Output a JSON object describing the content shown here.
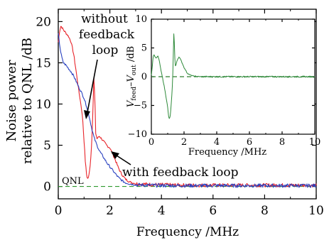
{
  "chart_data": [
    {
      "type": "line",
      "xlabel": "Frequency /MHz",
      "ylabel_lines": [
        "Noise power",
        "relative to QNL /dB"
      ],
      "xlim": [
        0,
        10
      ],
      "ylim": [
        -1.5,
        21.5
      ],
      "xticks": [
        "0",
        "2",
        "4",
        "6",
        "8",
        "10"
      ],
      "yticks": [
        "0",
        "5",
        "10",
        "15",
        "20"
      ],
      "reference_line": {
        "label": "QNL",
        "y": 0,
        "color": "#2e9a2e",
        "style": "dashed"
      },
      "annotations": [
        {
          "lines": [
            "without",
            "feedback",
            "loop"
          ],
          "series": "without feedback loop",
          "points_to": [
            1.05,
            11.0
          ]
        },
        {
          "text": "with feedback loop",
          "series": "with feedback loop",
          "points_to": [
            1.95,
            5.6
          ]
        }
      ],
      "series": [
        {
          "name": "without feedback loop",
          "color": "#e8242a",
          "x": [
            0,
            0.05,
            0.1,
            0.2,
            0.3,
            0.4,
            0.5,
            0.6,
            0.7,
            0.8,
            0.9,
            0.95,
            1.0,
            1.05,
            1.1,
            1.15,
            1.2,
            1.25,
            1.3,
            1.35,
            1.38,
            1.42,
            1.45,
            1.5,
            1.6,
            1.7,
            1.8,
            1.9,
            2.0,
            2.1,
            2.2,
            2.3,
            2.4,
            2.5,
            2.6,
            2.8,
            3.0,
            3.5,
            4.0,
            5.0,
            6.0,
            7.0,
            8.0,
            9.0,
            10.0
          ],
          "y": [
            17.5,
            18.8,
            19.5,
            19.0,
            18.6,
            18.2,
            17.5,
            16.0,
            13.8,
            11.5,
            9.5,
            8.0,
            5.5,
            3.0,
            1.3,
            0.9,
            1.5,
            3.0,
            5.5,
            10.0,
            13.2,
            10.5,
            6.5,
            5.8,
            6.1,
            5.7,
            5.3,
            4.9,
            4.7,
            4.0,
            3.3,
            2.5,
            1.8,
            1.3,
            0.9,
            0.5,
            0.35,
            0.25,
            0.2,
            0.15,
            0.15,
            0.15,
            0.15,
            0.15,
            0.15
          ]
        },
        {
          "name": "with feedback loop",
          "color": "#2a42c0",
          "x": [
            0,
            0.05,
            0.1,
            0.15,
            0.2,
            0.3,
            0.4,
            0.5,
            0.6,
            0.7,
            0.8,
            0.9,
            1.0,
            1.1,
            1.2,
            1.3,
            1.4,
            1.5,
            1.6,
            1.7,
            1.8,
            1.9,
            2.0,
            2.1,
            2.2,
            2.3,
            2.4,
            2.5,
            2.6,
            2.8,
            3.0,
            3.5,
            4.0,
            5.0,
            6.0,
            7.0,
            8.0,
            9.0,
            10.0
          ],
          "y": [
            18.5,
            17.3,
            16.2,
            15.5,
            15.0,
            14.7,
            14.3,
            13.9,
            13.4,
            12.7,
            12.0,
            11.4,
            10.7,
            9.7,
            8.5,
            7.0,
            5.8,
            5.0,
            4.3,
            3.8,
            3.3,
            2.8,
            2.4,
            2.0,
            1.6,
            1.2,
            0.9,
            0.65,
            0.45,
            0.3,
            0.2,
            0.15,
            0.12,
            0.1,
            0.1,
            0.1,
            0.1,
            0.1,
            0.1
          ]
        }
      ]
    },
    {
      "type": "line",
      "inset": true,
      "xlabel": "Frequency /MHz",
      "ylabel_parts": {
        "v1": "V",
        "s1": "feed",
        "mid": "–V",
        "s2": "out",
        "unit": " /dB"
      },
      "xlim": [
        0,
        10
      ],
      "ylim": [
        -10,
        10
      ],
      "xticks": [
        "0",
        "2",
        "4",
        "6",
        "8",
        "10"
      ],
      "yticks": [
        "10",
        "5",
        "0",
        "−5",
        "−10"
      ],
      "reference_line": {
        "y": 0,
        "color": "#2e7d2e",
        "style": "dashed"
      },
      "series": [
        {
          "name": "",
          "color": "#2e8a3a",
          "x": [
            0,
            0.05,
            0.1,
            0.15,
            0.2,
            0.3,
            0.4,
            0.5,
            0.55,
            0.6,
            0.7,
            0.8,
            0.9,
            1.0,
            1.05,
            1.1,
            1.15,
            1.2,
            1.25,
            1.3,
            1.32,
            1.35,
            1.38,
            1.42,
            1.45,
            1.5,
            1.6,
            1.7,
            1.8,
            1.9,
            2.0,
            2.1,
            2.2,
            2.4,
            2.6,
            2.8,
            3.0,
            4.0,
            5.0,
            6.0,
            7.0,
            8.0,
            9.0,
            10.0
          ],
          "y": [
            0.3,
            1.5,
            3.3,
            3.9,
            3.6,
            3.2,
            3.6,
            2.6,
            1.7,
            0.9,
            -0.4,
            -1.9,
            -3.5,
            -5.4,
            -6.8,
            -7.4,
            -6.9,
            -5.5,
            -3.3,
            -0.8,
            1.5,
            4.5,
            8.0,
            5.0,
            1.8,
            2.0,
            3.0,
            3.5,
            2.9,
            2.3,
            1.6,
            1.1,
            0.6,
            0.25,
            0.1,
            0.05,
            0.0,
            0.0,
            0.0,
            0.0,
            0.0,
            0.0,
            0.0,
            0.0
          ]
        }
      ]
    }
  ]
}
